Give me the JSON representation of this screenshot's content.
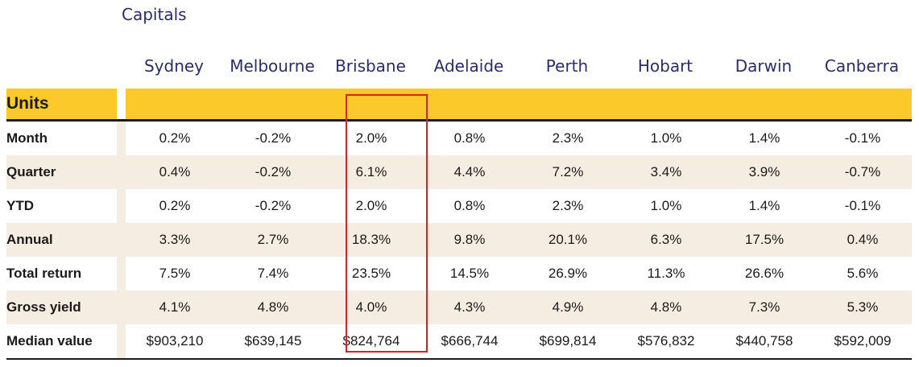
{
  "section_title": "Capitals",
  "columns": [
    "Sydney",
    "Melbourne",
    "Brisbane",
    "Adelaide",
    "Perth",
    "Hobart",
    "Darwin",
    "Canberra"
  ],
  "table_heading": "Units",
  "rows": [
    {
      "label": "Month",
      "values": [
        "0.2%",
        "-0.2%",
        "2.0%",
        "0.8%",
        "2.3%",
        "1.0%",
        "1.4%",
        "-0.1%"
      ]
    },
    {
      "label": "Quarter",
      "values": [
        "0.4%",
        "-0.2%",
        "6.1%",
        "4.4%",
        "7.2%",
        "3.4%",
        "3.9%",
        "-0.7%"
      ]
    },
    {
      "label": "YTD",
      "values": [
        "0.2%",
        "-0.2%",
        "2.0%",
        "0.8%",
        "2.3%",
        "1.0%",
        "1.4%",
        "-0.1%"
      ]
    },
    {
      "label": "Annual",
      "values": [
        "3.3%",
        "2.7%",
        "18.3%",
        "9.8%",
        "20.1%",
        "6.3%",
        "17.5%",
        "0.4%"
      ]
    },
    {
      "label": "Total return",
      "values": [
        "7.5%",
        "7.4%",
        "23.5%",
        "14.5%",
        "26.9%",
        "11.3%",
        "26.6%",
        "5.6%"
      ]
    },
    {
      "label": "Gross yield",
      "values": [
        "4.1%",
        "4.8%",
        "4.0%",
        "4.3%",
        "4.9%",
        "4.8%",
        "7.3%",
        "5.3%"
      ]
    },
    {
      "label": "Median value",
      "values": [
        "$903,210",
        "$639,145",
        "$824,764",
        "$666,744",
        "$699,814",
        "$576,832",
        "$440,758",
        "$592,009"
      ]
    }
  ],
  "highlighted_column": "Brisbane",
  "colors": {
    "header_band": "#fbc929",
    "alt_row": "#f5ede1",
    "title_text": "#2b2c6e",
    "highlight_border": "#e02020"
  }
}
